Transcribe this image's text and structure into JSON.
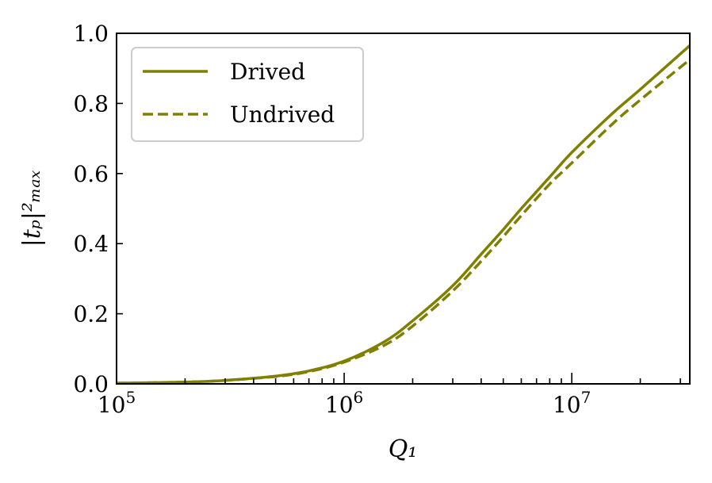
{
  "chart_data": {
    "type": "line",
    "xlabel": "Q₁",
    "ylabel": "|tₚ|²ₘₐₓ",
    "x_scale": "log",
    "xlim": [
      100000,
      33000000
    ],
    "ylim": [
      0.0,
      1.0
    ],
    "x_ticks": [
      {
        "value": 100000,
        "base": "10",
        "exp": "5"
      },
      {
        "value": 1000000,
        "base": "10",
        "exp": "6"
      },
      {
        "value": 10000000,
        "base": "10",
        "exp": "7"
      }
    ],
    "y_ticks": [
      {
        "value": 0.0,
        "label": "0.0"
      },
      {
        "value": 0.2,
        "label": "0.2"
      },
      {
        "value": 0.4,
        "label": "0.4"
      },
      {
        "value": 0.6,
        "label": "0.6"
      },
      {
        "value": 0.8,
        "label": "0.8"
      },
      {
        "value": 1.0,
        "label": "1.0"
      }
    ],
    "grid": false,
    "legend_position": "top-left",
    "color": "#808000",
    "series": [
      {
        "name": "Drived",
        "style": "solid",
        "x": [
          100000,
          200000,
          300000,
          500000,
          700000,
          1000000,
          1500000,
          2000000,
          3000000,
          4000000,
          5000000,
          6000000,
          8000000,
          10000000,
          15000000,
          20000000,
          33000000
        ],
        "y": [
          0.002,
          0.005,
          0.01,
          0.022,
          0.037,
          0.065,
          0.12,
          0.18,
          0.28,
          0.37,
          0.44,
          0.5,
          0.59,
          0.66,
          0.77,
          0.84,
          0.965
        ]
      },
      {
        "name": "Undrived",
        "style": "dashed",
        "x": [
          100000,
          200000,
          300000,
          500000,
          700000,
          1000000,
          1500000,
          2000000,
          3000000,
          4000000,
          5000000,
          6000000,
          8000000,
          10000000,
          15000000,
          20000000,
          33000000
        ],
        "y": [
          0.002,
          0.005,
          0.01,
          0.021,
          0.035,
          0.062,
          0.11,
          0.165,
          0.265,
          0.35,
          0.42,
          0.48,
          0.57,
          0.63,
          0.74,
          0.81,
          0.925
        ]
      }
    ]
  }
}
